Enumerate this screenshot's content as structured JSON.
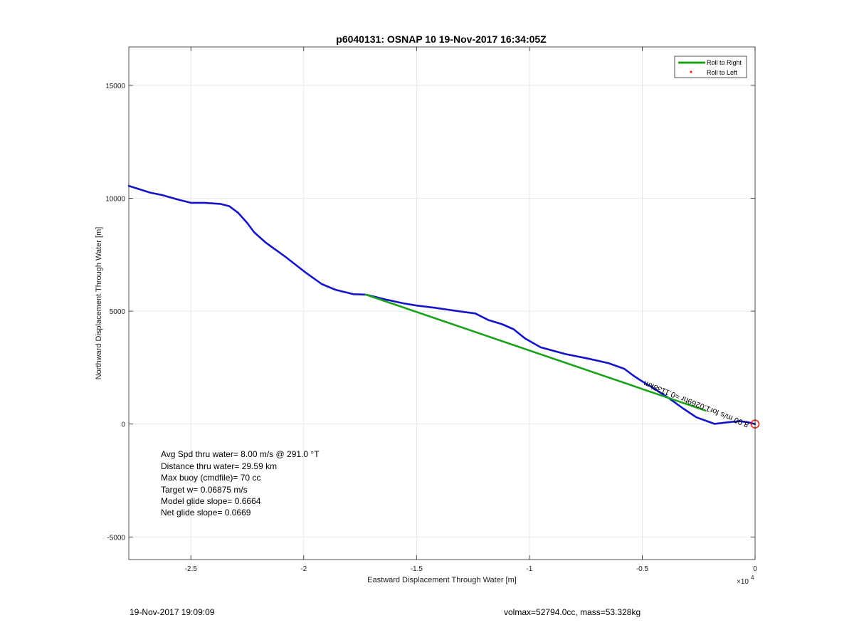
{
  "chart_data": {
    "type": "line",
    "title": "p6040131: OSNAP 10 19-Nov-2017 16:34:05Z",
    "xlabel": "Eastward Displacement Through Water [m]",
    "ylabel": "Northward Displacement Through Water [m]",
    "x_multiplier_label": "×10",
    "x_multiplier_exponent": "4",
    "xlim": [
      -27750,
      0
    ],
    "ylim": [
      -6000,
      16700
    ],
    "xticks": [
      -25000,
      -20000,
      -15000,
      -10000,
      -5000,
      0
    ],
    "xtick_labels": [
      "-2.5",
      "-2",
      "-1.5",
      "-1",
      "-0.5",
      "0"
    ],
    "yticks": [
      -5000,
      0,
      5000,
      10000,
      15000
    ],
    "ytick_labels": [
      "-5000",
      "0",
      "5000",
      "10000",
      "15000"
    ],
    "grid": true,
    "legend_position": "top-right",
    "legend": [
      {
        "label": "Roll to Right",
        "color": "#1aa31a",
        "marker": "line"
      },
      {
        "label": "Roll to Left",
        "color": "#e8261e",
        "marker": "dot"
      }
    ],
    "series": [
      {
        "color": "#1515c8",
        "x": [
          -27750,
          -26800,
          -26300,
          -25600,
          -25000,
          -24400,
          -23700,
          -23300,
          -22900,
          -22500,
          -22200,
          -21700,
          -20800,
          -19900,
          -19200,
          -18600,
          -17800,
          -17250,
          -16900,
          -16300,
          -15600,
          -15000,
          -14200,
          -13500,
          -12800,
          -12400,
          -11800,
          -11200,
          -10700,
          -10200,
          -9500,
          -8400,
          -7400,
          -6500,
          -5800,
          -5400,
          -5100,
          -4600,
          -3900,
          -3200,
          -2600,
          -1800,
          -1200,
          -700,
          -300,
          0
        ],
        "y": [
          10550,
          10250,
          10150,
          9950,
          9800,
          9800,
          9750,
          9650,
          9350,
          8900,
          8500,
          8050,
          7400,
          6700,
          6200,
          5950,
          5750,
          5730,
          5650,
          5500,
          5350,
          5250,
          5150,
          5050,
          4950,
          4900,
          4600,
          4420,
          4200,
          3800,
          3400,
          3100,
          2900,
          2700,
          2450,
          2150,
          1950,
          1650,
          1200,
          700,
          300,
          10,
          80,
          130,
          80,
          0
        ]
      },
      {
        "name": "Roll to Right",
        "color": "#1aa31a",
        "x": [
          -17250,
          -2200
        ],
        "y": [
          5730,
          600
        ]
      }
    ],
    "marker_origin": {
      "x": 0,
      "y": 0,
      "color": "#e8261e"
    },
    "annotation_rotated": "8.00 m/s for1.0269hr =0.1138km",
    "stats": [
      "Avg Spd thru water=  8.00 m/s @ 291.0 °T",
      "Distance thru water= 29.59 km",
      "Max buoy (cmdfile)= 70 cc",
      "Target w= 0.06875 m/s",
      "Model glide slope= 0.6664",
      "Net glide slope= 0.0669"
    ]
  },
  "footer": {
    "left": "19-Nov-2017 19:09:09",
    "right": "volmax=52794.0cc, mass=53.328kg"
  }
}
